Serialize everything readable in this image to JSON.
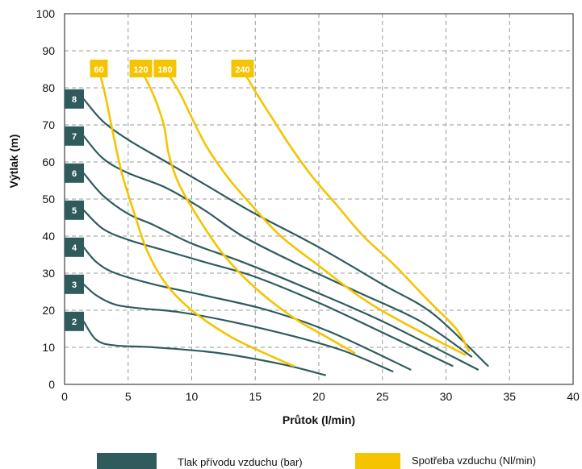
{
  "chart_data": {
    "type": "line",
    "xlabel": "Průtok (l/min)",
    "ylabel": "Výtlak (m)",
    "xlim": [
      0,
      40
    ],
    "ylim": [
      0,
      100
    ],
    "xticks": [
      0,
      5,
      10,
      15,
      20,
      25,
      30,
      35,
      40
    ],
    "yticks": [
      0,
      10,
      20,
      30,
      40,
      50,
      60,
      70,
      80,
      90,
      100
    ],
    "grid": true,
    "legend_position": "bottom",
    "legend": [
      {
        "label": "Tlak přívodu vzduchu (bar)",
        "color": "#2f5b5d"
      },
      {
        "label": "Spotřeba vzduchu (Nl/min)",
        "color": "#f5c400"
      }
    ],
    "pressure_series": [
      {
        "label": "2",
        "points": [
          [
            1.5,
            17
          ],
          [
            2.5,
            12
          ],
          [
            4,
            10.5
          ],
          [
            7,
            10
          ],
          [
            12,
            8.5
          ],
          [
            17,
            5.5
          ],
          [
            20.5,
            2.5
          ]
        ]
      },
      {
        "label": "3",
        "points": [
          [
            1.5,
            27
          ],
          [
            2.5,
            24
          ],
          [
            4,
            21.5
          ],
          [
            6,
            20.5
          ],
          [
            9,
            19.5
          ],
          [
            13,
            17
          ],
          [
            18,
            13
          ],
          [
            22,
            9
          ],
          [
            25.8,
            3.5
          ]
        ]
      },
      {
        "label": "4",
        "points": [
          [
            1.5,
            37
          ],
          [
            2.5,
            33
          ],
          [
            4,
            30
          ],
          [
            7,
            27
          ],
          [
            11,
            24
          ],
          [
            16,
            20
          ],
          [
            21,
            14
          ],
          [
            27.2,
            4
          ]
        ]
      },
      {
        "label": "5",
        "points": [
          [
            1.5,
            47
          ],
          [
            3,
            42
          ],
          [
            5,
            39
          ],
          [
            8,
            36
          ],
          [
            11,
            33
          ],
          [
            15,
            29
          ],
          [
            20,
            22
          ],
          [
            25,
            14
          ],
          [
            30.5,
            5
          ]
        ]
      },
      {
        "label": "6",
        "points": [
          [
            1.5,
            57
          ],
          [
            3,
            51
          ],
          [
            5,
            46
          ],
          [
            7,
            43
          ],
          [
            10,
            38
          ],
          [
            14,
            33
          ],
          [
            19,
            26
          ],
          [
            25,
            17
          ],
          [
            32.5,
            4
          ]
        ]
      },
      {
        "label": "7",
        "points": [
          [
            1.5,
            67
          ],
          [
            3,
            61
          ],
          [
            5,
            57
          ],
          [
            8,
            53
          ],
          [
            11,
            47
          ],
          [
            14,
            40
          ],
          [
            18,
            33
          ],
          [
            23,
            25
          ],
          [
            28,
            17
          ],
          [
            32,
            7.5
          ]
        ]
      },
      {
        "label": "8",
        "points": [
          [
            1.5,
            77
          ],
          [
            3,
            71
          ],
          [
            5,
            66
          ],
          [
            8,
            60
          ],
          [
            11,
            54
          ],
          [
            15,
            46
          ],
          [
            20,
            37
          ],
          [
            25,
            27
          ],
          [
            29,
            19
          ],
          [
            33.3,
            5
          ]
        ]
      }
    ],
    "consumption_series": [
      {
        "label": "60",
        "points": [
          [
            2.7,
            85
          ],
          [
            3.2,
            78
          ],
          [
            3.8,
            68
          ],
          [
            4.5,
            57
          ],
          [
            5.5,
            46
          ],
          [
            6.5,
            36
          ],
          [
            8,
            27
          ],
          [
            10,
            20
          ],
          [
            13,
            13
          ],
          [
            16,
            8
          ],
          [
            18,
            5
          ]
        ]
      },
      {
        "label": "120",
        "points": [
          [
            6,
            85
          ],
          [
            7,
            78
          ],
          [
            7.8,
            70
          ],
          [
            8.2,
            62
          ],
          [
            9,
            54
          ],
          [
            10.5,
            45
          ],
          [
            12.5,
            35
          ],
          [
            15,
            26
          ],
          [
            18,
            18
          ],
          [
            20.5,
            13
          ],
          [
            22.8,
            8.5
          ]
        ]
      },
      {
        "label": "180",
        "points": [
          [
            7.9,
            85
          ],
          [
            9,
            79
          ],
          [
            10,
            72
          ],
          [
            11.2,
            64
          ],
          [
            12.8,
            56
          ],
          [
            14.8,
            48
          ],
          [
            17,
            40
          ],
          [
            20,
            32
          ],
          [
            23.5,
            23
          ],
          [
            27,
            16
          ],
          [
            31.5,
            8
          ]
        ]
      },
      {
        "label": "240",
        "points": [
          [
            14,
            85
          ],
          [
            15,
            79
          ],
          [
            16.3,
            72
          ],
          [
            17.8,
            64
          ],
          [
            19.5,
            56
          ],
          [
            21.5,
            48
          ],
          [
            23.5,
            40
          ],
          [
            26,
            32
          ],
          [
            28.5,
            23
          ],
          [
            30.8,
            15
          ],
          [
            31.8,
            9
          ]
        ]
      }
    ]
  }
}
